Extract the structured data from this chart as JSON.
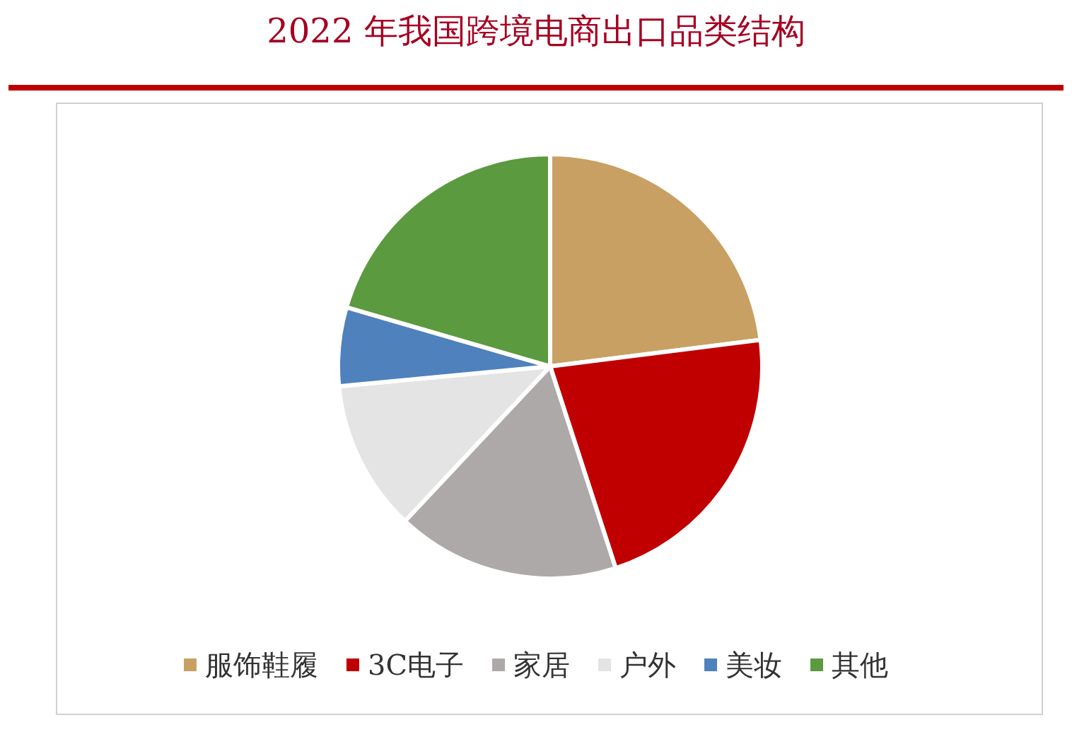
{
  "chart_data": {
    "type": "pie",
    "title": "2022 年我国跨境电商出口品类结构",
    "categories": [
      "服饰鞋履",
      "3C电子",
      "家居",
      "户外",
      "美妆",
      "其他"
    ],
    "values": [
      23,
      22,
      17,
      11.5,
      6,
      20.5
    ],
    "colors": [
      "#C9A063",
      "#C00000",
      "#ADA9A8",
      "#E4E4E4",
      "#4F81BD",
      "#5B9A3F"
    ],
    "legend": "bottom"
  }
}
